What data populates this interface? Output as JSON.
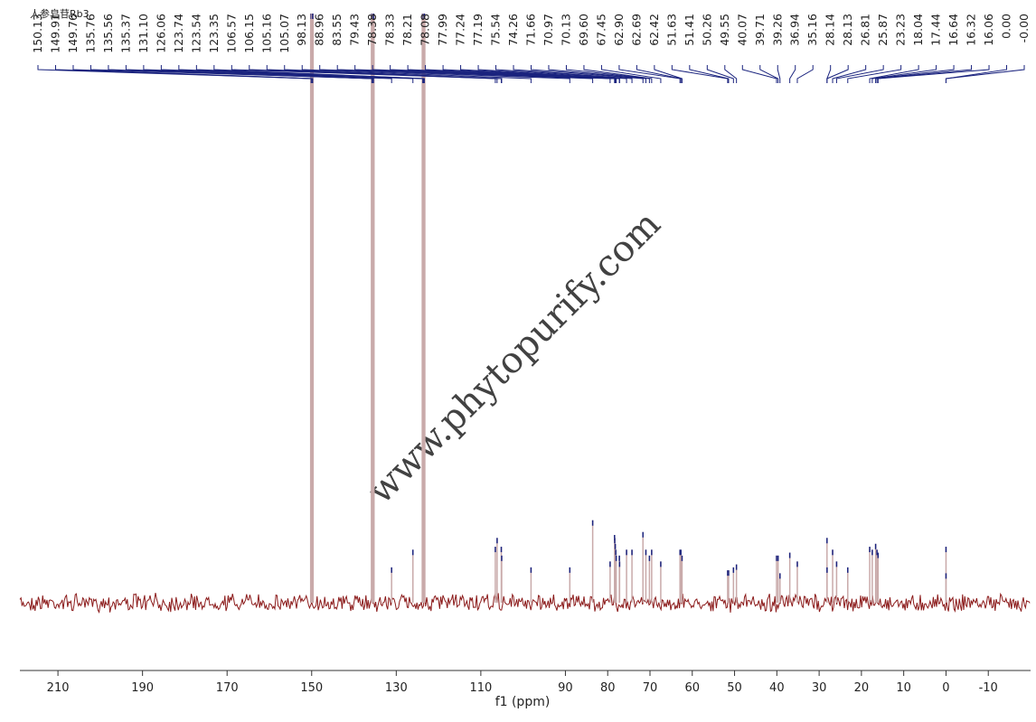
{
  "chart_data": {
    "type": "spectrum",
    "title": "人参皂苷Rb3",
    "watermark": "www.phytopurify.com",
    "x_label": "f1 (ppm)",
    "x": [
      150.13,
      149.91,
      149.76,
      135.76,
      135.56,
      135.37,
      {
        "value": 131.1,
        "label": "131.10"
      },
      126.06,
      123.74,
      123.54,
      123.35,
      106.57,
      106.15,
      105.16,
      105.07,
      98.13,
      88.96,
      83.55,
      79.43,
      78.38,
      78.33,
      78.21,
      78.08,
      77.99,
      77.24,
      77.19,
      75.54,
      74.26,
      71.66,
      70.97,
      70.13,
      {
        "value": 69.6,
        "label": "69.60"
      },
      67.45,
      {
        "value": 62.9,
        "label": "62.90"
      },
      62.69,
      62.42,
      51.63,
      51.41,
      50.26,
      49.55,
      40.07,
      39.71,
      39.26,
      36.94,
      35.16,
      28.14,
      28.13,
      26.81,
      25.87,
      23.23,
      18.04,
      17.44,
      16.64,
      16.32,
      16.06,
      {
        "value": 0,
        "label": "0.00"
      },
      {
        "value": 0,
        "label": "-0.00"
      }
    ],
    "values": [
      100,
      100,
      100,
      100,
      100,
      100,
      6,
      9,
      100,
      100,
      100,
      9.5,
      11,
      9.5,
      8,
      6,
      6,
      14,
      7,
      11.5,
      11,
      10,
      9,
      8,
      8,
      7,
      9,
      9,
      12,
      9,
      8,
      9,
      7,
      9,
      9,
      8,
      5.5,
      5.5,
      6,
      6.5,
      8,
      8,
      5,
      8.5,
      7,
      11,
      6,
      9,
      7,
      6,
      9.5,
      9,
      10,
      9,
      8.5,
      9.5,
      5
    ],
    "xlim": [
      219,
      -20
    ],
    "ylim": [
      0,
      100
    ],
    "xticks": [
      210,
      190,
      170,
      150,
      130,
      110,
      90,
      80,
      70,
      60,
      50,
      40,
      30,
      20,
      10,
      0,
      -10
    ],
    "color": "#c9aaaa",
    "noise_color": "#8b1a1a",
    "label_color": "#1a237e",
    "watermark_color": "#5ccc4a"
  }
}
